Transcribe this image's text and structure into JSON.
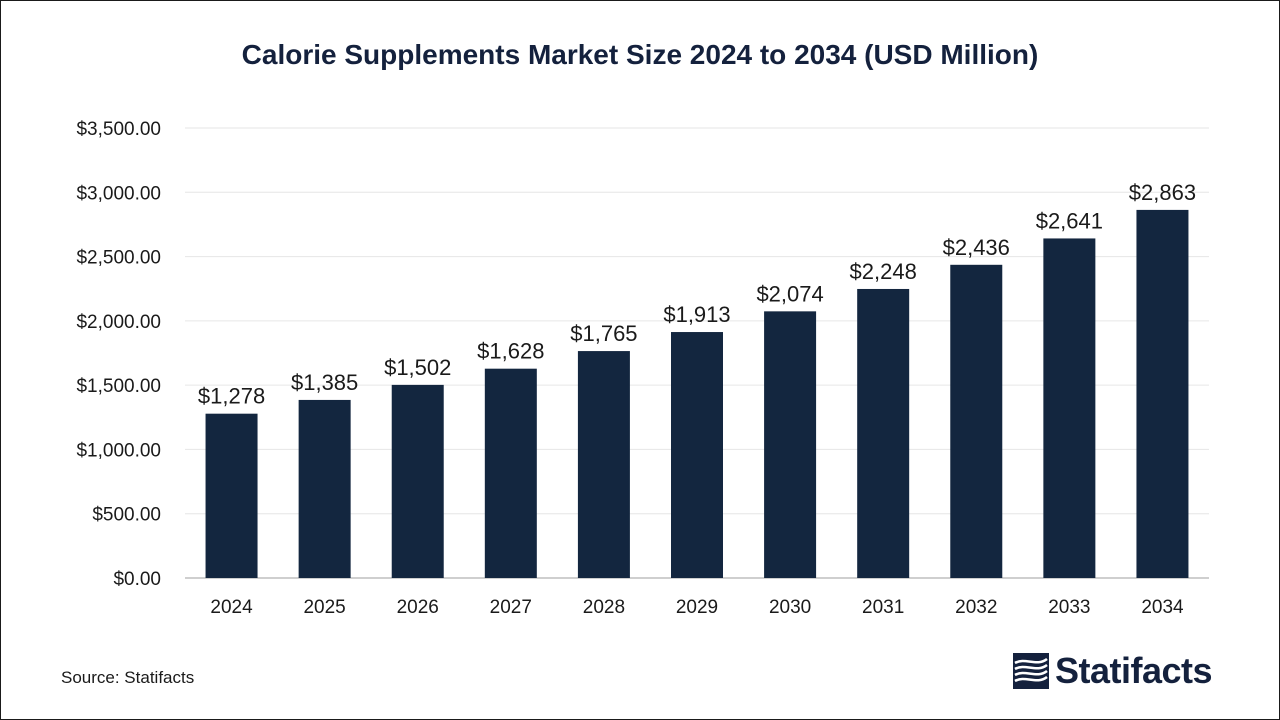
{
  "chart_data": {
    "type": "bar",
    "title": "Calorie Supplements Market Size 2024 to 2034 (USD Million)",
    "xlabel": "",
    "ylabel": "",
    "categories": [
      "2024",
      "2025",
      "2026",
      "2027",
      "2028",
      "2029",
      "2030",
      "2031",
      "2032",
      "2033",
      "2034"
    ],
    "values": [
      1278,
      1385,
      1502,
      1628,
      1765,
      1913,
      2074,
      2248,
      2436,
      2641,
      2863
    ],
    "data_labels": [
      "$1,278",
      "$1,385",
      "$1,502",
      "$1,628",
      "$1,765",
      "$1,913",
      "$2,074",
      "$2,248",
      "$2,436",
      "$2,641",
      "$2,863"
    ],
    "ylim": [
      0,
      3500
    ],
    "yticks": [
      0,
      500,
      1000,
      1500,
      2000,
      2500,
      3000,
      3500
    ],
    "ytick_labels": [
      "$0.00",
      "$500.00",
      "$1,000.00",
      "$1,500.00",
      "$2,000.00",
      "$2,500.00",
      "$3,000.00",
      "$3,500.00"
    ],
    "grid": true,
    "legend": "none"
  },
  "colors": {
    "bar": "#13263f",
    "title": "#14213d",
    "gridline": "#e6e6e6",
    "axis": "#bfbfbf"
  },
  "source": "Source: Statifacts",
  "logo": {
    "text": "Statifacts",
    "icon": "statifacts-logo-icon"
  }
}
